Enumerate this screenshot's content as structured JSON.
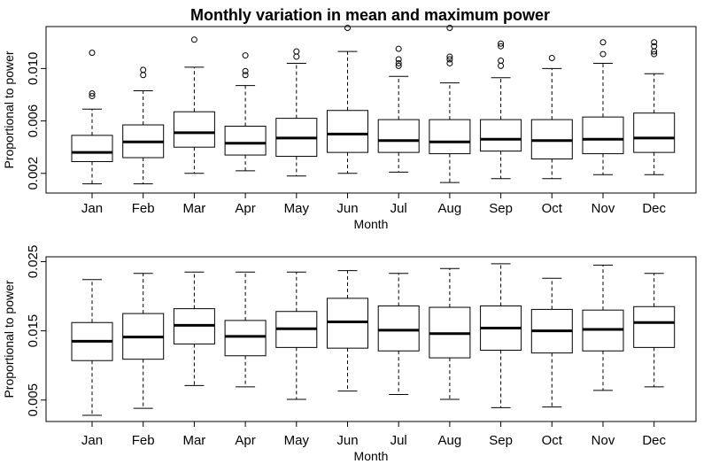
{
  "chart_data": [
    {
      "type": "boxplot",
      "title": "Monthly variation in mean and maximum power",
      "xlabel": "Month",
      "ylabel": "Proportional to power",
      "categories": [
        "Jan",
        "Feb",
        "Mar",
        "Apr",
        "May",
        "Jun",
        "Jul",
        "Aug",
        "Sep",
        "Oct",
        "Nov",
        "Dec"
      ],
      "yticks": [
        0.002,
        0.006,
        0.01
      ],
      "ytick_labels": [
        "0.002",
        "0.006",
        "0.010"
      ],
      "ylim": [
        0.0005,
        0.0132
      ],
      "boxes": [
        {
          "whisker_low": 0.0012,
          "q1": 0.0029,
          "median": 0.0036,
          "q3": 0.0049,
          "whisker_high": 0.0069,
          "outliers": [
            0.0079,
            0.0081,
            0.0112
          ]
        },
        {
          "whisker_low": 0.0012,
          "q1": 0.0032,
          "median": 0.0044,
          "q3": 0.0057,
          "whisker_high": 0.0083,
          "outliers": [
            0.0095,
            0.0099
          ]
        },
        {
          "whisker_low": 0.002,
          "q1": 0.004,
          "median": 0.0051,
          "q3": 0.0067,
          "whisker_high": 0.0101,
          "outliers": [
            0.0122
          ]
        },
        {
          "whisker_low": 0.0022,
          "q1": 0.0034,
          "median": 0.0043,
          "q3": 0.0056,
          "whisker_high": 0.0087,
          "outliers": [
            0.0095,
            0.0098,
            0.011
          ]
        },
        {
          "whisker_low": 0.0018,
          "q1": 0.0033,
          "median": 0.0047,
          "q3": 0.0062,
          "whisker_high": 0.0104,
          "outliers": [
            0.0109,
            0.0113
          ]
        },
        {
          "whisker_low": 0.002,
          "q1": 0.0036,
          "median": 0.005,
          "q3": 0.0068,
          "whisker_high": 0.0113,
          "outliers": [
            0.0131
          ]
        },
        {
          "whisker_low": 0.0021,
          "q1": 0.0036,
          "median": 0.0045,
          "q3": 0.0061,
          "whisker_high": 0.0094,
          "outliers": [
            0.0102,
            0.0104,
            0.0107,
            0.0115
          ]
        },
        {
          "whisker_low": 0.0013,
          "q1": 0.0035,
          "median": 0.0044,
          "q3": 0.0061,
          "whisker_high": 0.0089,
          "outliers": [
            0.0104,
            0.0107,
            0.0109,
            0.0131
          ]
        },
        {
          "whisker_low": 0.0016,
          "q1": 0.0037,
          "median": 0.0046,
          "q3": 0.0061,
          "whisker_high": 0.0093,
          "outliers": [
            0.0102,
            0.0106,
            0.0117,
            0.0119
          ]
        },
        {
          "whisker_low": 0.0016,
          "q1": 0.0031,
          "median": 0.0045,
          "q3": 0.0061,
          "whisker_high": 0.01,
          "outliers": [
            0.0108
          ]
        },
        {
          "whisker_low": 0.0019,
          "q1": 0.0035,
          "median": 0.0046,
          "q3": 0.0063,
          "whisker_high": 0.0104,
          "outliers": [
            0.0111,
            0.012
          ]
        },
        {
          "whisker_low": 0.0019,
          "q1": 0.0036,
          "median": 0.0047,
          "q3": 0.0066,
          "whisker_high": 0.0096,
          "outliers": [
            0.0111,
            0.0113,
            0.0117,
            0.012
          ]
        }
      ]
    },
    {
      "type": "boxplot",
      "title": "",
      "xlabel": "Month",
      "ylabel": "Proportional to power",
      "categories": [
        "Jan",
        "Feb",
        "Mar",
        "Apr",
        "May",
        "Jun",
        "Jul",
        "Aug",
        "Sep",
        "Oct",
        "Nov",
        "Dec"
      ],
      "yticks": [
        0.005,
        0.015,
        0.025
      ],
      "ytick_labels": [
        "0.005",
        "0.015",
        "0.025"
      ],
      "ylim": [
        0.0019,
        0.0257
      ],
      "boxes": [
        {
          "whisker_low": 0.0028,
          "q1": 0.0107,
          "median": 0.0135,
          "q3": 0.0162,
          "whisker_high": 0.0224,
          "outliers": []
        },
        {
          "whisker_low": 0.0038,
          "q1": 0.0109,
          "median": 0.0141,
          "q3": 0.0175,
          "whisker_high": 0.0233,
          "outliers": []
        },
        {
          "whisker_low": 0.0071,
          "q1": 0.0131,
          "median": 0.0158,
          "q3": 0.0182,
          "whisker_high": 0.0235,
          "outliers": []
        },
        {
          "whisker_low": 0.0069,
          "q1": 0.0114,
          "median": 0.0142,
          "q3": 0.0165,
          "whisker_high": 0.0235,
          "outliers": []
        },
        {
          "whisker_low": 0.0051,
          "q1": 0.0126,
          "median": 0.0153,
          "q3": 0.0178,
          "whisker_high": 0.0235,
          "outliers": []
        },
        {
          "whisker_low": 0.0063,
          "q1": 0.0125,
          "median": 0.0163,
          "q3": 0.0197,
          "whisker_high": 0.0237,
          "outliers": []
        },
        {
          "whisker_low": 0.0058,
          "q1": 0.0121,
          "median": 0.0151,
          "q3": 0.0186,
          "whisker_high": 0.0233,
          "outliers": []
        },
        {
          "whisker_low": 0.0051,
          "q1": 0.0111,
          "median": 0.0146,
          "q3": 0.0184,
          "whisker_high": 0.024,
          "outliers": []
        },
        {
          "whisker_low": 0.0039,
          "q1": 0.0122,
          "median": 0.0154,
          "q3": 0.0186,
          "whisker_high": 0.0247,
          "outliers": []
        },
        {
          "whisker_low": 0.004,
          "q1": 0.0118,
          "median": 0.015,
          "q3": 0.0181,
          "whisker_high": 0.0226,
          "outliers": []
        },
        {
          "whisker_low": 0.0064,
          "q1": 0.0121,
          "median": 0.0152,
          "q3": 0.018,
          "whisker_high": 0.0245,
          "outliers": []
        },
        {
          "whisker_low": 0.0069,
          "q1": 0.0126,
          "median": 0.0162,
          "q3": 0.0185,
          "whisker_high": 0.0233,
          "outliers": []
        }
      ]
    }
  ]
}
